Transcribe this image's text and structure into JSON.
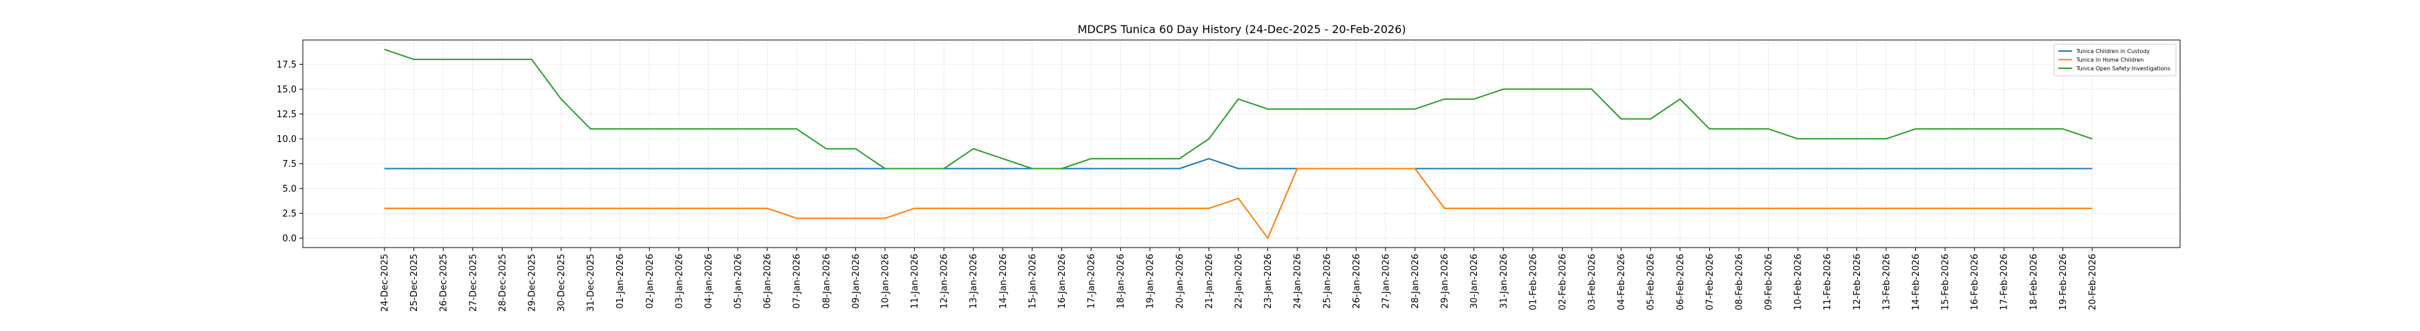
{
  "chart_data": {
    "type": "line",
    "title": "MDCPS Tunica 60 Day History (24-Dec-2025 - 20-Feb-2026)",
    "xlabel": "",
    "ylabel": "",
    "ylim": [
      -0.95,
      19.95
    ],
    "yticks": [
      "0.0",
      "2.5",
      "5.0",
      "7.5",
      "10.0",
      "12.5",
      "15.0",
      "17.5"
    ],
    "grid": true,
    "legend_position": "top-right",
    "categories": [
      "24-Dec-2025",
      "25-Dec-2025",
      "26-Dec-2025",
      "27-Dec-2025",
      "28-Dec-2025",
      "29-Dec-2025",
      "30-Dec-2025",
      "31-Dec-2025",
      "01-Jan-2026",
      "02-Jan-2026",
      "03-Jan-2026",
      "04-Jan-2026",
      "05-Jan-2026",
      "06-Jan-2026",
      "07-Jan-2026",
      "08-Jan-2026",
      "09-Jan-2026",
      "10-Jan-2026",
      "11-Jan-2026",
      "12-Jan-2026",
      "13-Jan-2026",
      "14-Jan-2026",
      "15-Jan-2026",
      "16-Jan-2026",
      "17-Jan-2026",
      "18-Jan-2026",
      "19-Jan-2026",
      "20-Jan-2026",
      "21-Jan-2026",
      "22-Jan-2026",
      "23-Jan-2026",
      "24-Jan-2026",
      "25-Jan-2026",
      "26-Jan-2026",
      "27-Jan-2026",
      "28-Jan-2026",
      "29-Jan-2026",
      "30-Jan-2026",
      "31-Jan-2026",
      "01-Feb-2026",
      "02-Feb-2026",
      "03-Feb-2026",
      "04-Feb-2026",
      "05-Feb-2026",
      "06-Feb-2026",
      "07-Feb-2026",
      "08-Feb-2026",
      "09-Feb-2026",
      "10-Feb-2026",
      "11-Feb-2026",
      "12-Feb-2026",
      "13-Feb-2026",
      "14-Feb-2026",
      "15-Feb-2026",
      "16-Feb-2026",
      "17-Feb-2026",
      "18-Feb-2026",
      "19-Feb-2026",
      "20-Feb-2026"
    ],
    "series": [
      {
        "name": "Tunica Children in Custody",
        "color": "#1f77b4",
        "values": [
          7,
          7,
          7,
          7,
          7,
          7,
          7,
          7,
          7,
          7,
          7,
          7,
          7,
          7,
          7,
          7,
          7,
          7,
          7,
          7,
          7,
          7,
          7,
          7,
          7,
          7,
          7,
          7,
          8,
          7,
          7,
          7,
          7,
          7,
          7,
          7,
          7,
          7,
          7,
          7,
          7,
          7,
          7,
          7,
          7,
          7,
          7,
          7,
          7,
          7,
          7,
          7,
          7,
          7,
          7,
          7,
          7,
          7,
          7
        ]
      },
      {
        "name": "Tunica In Home Children",
        "color": "#ff7f0e",
        "values": [
          3,
          3,
          3,
          3,
          3,
          3,
          3,
          3,
          3,
          3,
          3,
          3,
          3,
          3,
          2,
          2,
          2,
          2,
          3,
          3,
          3,
          3,
          3,
          3,
          3,
          3,
          3,
          3,
          3,
          4,
          0,
          7,
          7,
          7,
          7,
          7,
          3,
          3,
          3,
          3,
          3,
          3,
          3,
          3,
          3,
          3,
          3,
          3,
          3,
          3,
          3,
          3,
          3,
          3,
          3,
          3,
          3,
          3,
          3
        ]
      },
      {
        "name": "Tunica Open Safety Investigations",
        "color": "#2ca02c",
        "values": [
          19,
          18,
          18,
          18,
          18,
          18,
          14,
          11,
          11,
          11,
          11,
          11,
          11,
          11,
          11,
          9,
          9,
          7,
          7,
          7,
          9,
          8,
          7,
          7,
          8,
          8,
          8,
          8,
          10,
          14,
          13,
          13,
          13,
          13,
          13,
          13,
          14,
          14,
          15,
          15,
          15,
          15,
          12,
          12,
          14,
          11,
          11,
          11,
          10,
          10,
          10,
          10,
          11,
          11,
          11,
          11,
          11,
          11,
          10
        ]
      }
    ]
  }
}
